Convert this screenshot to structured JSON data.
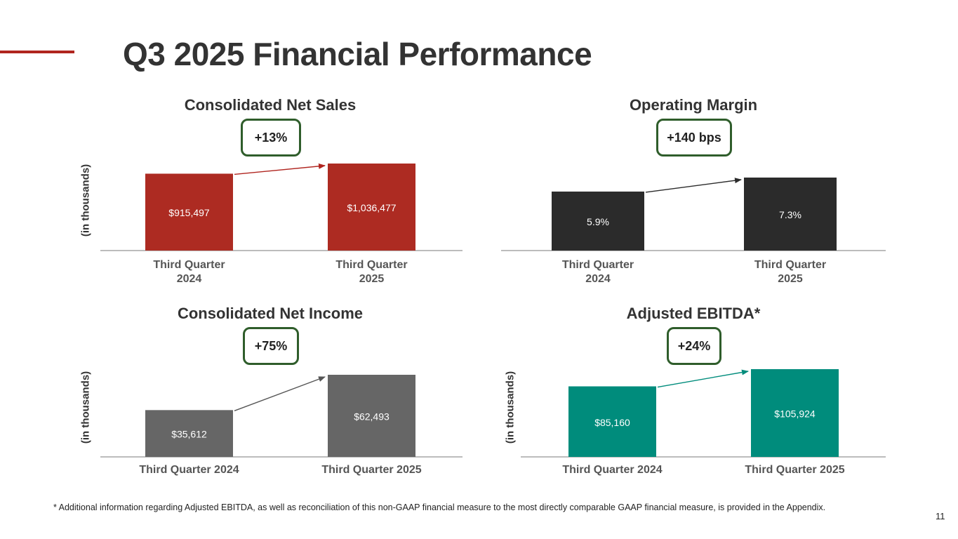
{
  "page_title": "Q3 2025 Financial Performance",
  "footnote": "* Additional information regarding Adjusted EBITDA, as well as reconciliation of this non-GAAP financial measure to the most directly comparable GAAP financial measure, is provided in the Appendix.",
  "page_number": "11",
  "colors": {
    "accent": "#b0251f",
    "badge_border": "#2f5d2b"
  },
  "chart_data": [
    {
      "type": "bar",
      "title": "Consolidated Net Sales",
      "badge": "+13%",
      "ylabel": "(in thousands)",
      "categories": [
        [
          "Third Quarter",
          "2024"
        ],
        [
          "Third Quarter",
          "2025"
        ]
      ],
      "values": [
        915497,
        1036477
      ],
      "value_labels": [
        "$915,497",
        "$1,036,477"
      ],
      "color": "#ad2b22",
      "arrow_color": "#b0251f"
    },
    {
      "type": "bar",
      "title": "Operating Margin",
      "badge": "+140 bps",
      "ylabel": "",
      "categories": [
        [
          "Third Quarter",
          "2024"
        ],
        [
          "Third Quarter",
          "2025"
        ]
      ],
      "values": [
        5.9,
        7.3
      ],
      "value_labels": [
        "5.9%",
        "7.3%"
      ],
      "color": "#2b2b2b",
      "arrow_color": "#2b2b2b"
    },
    {
      "type": "bar",
      "title": "Consolidated Net Income",
      "badge": "+75%",
      "ylabel": "(in thousands)",
      "categories": [
        [
          "Third Quarter 2024"
        ],
        [
          "Third Quarter 2025"
        ]
      ],
      "values": [
        35612,
        62493
      ],
      "value_labels": [
        "$35,612",
        "$62,493"
      ],
      "color": "#666666",
      "arrow_color": "#555555"
    },
    {
      "type": "bar",
      "title": "Adjusted EBITDA*",
      "badge": "+24%",
      "ylabel": "(in thousands)",
      "categories": [
        [
          "Third Quarter 2024"
        ],
        [
          "Third Quarter 2025"
        ]
      ],
      "values": [
        85160,
        105924
      ],
      "value_labels": [
        "$85,160",
        "$105,924"
      ],
      "color": "#008c7c",
      "arrow_color": "#008c7c"
    }
  ]
}
